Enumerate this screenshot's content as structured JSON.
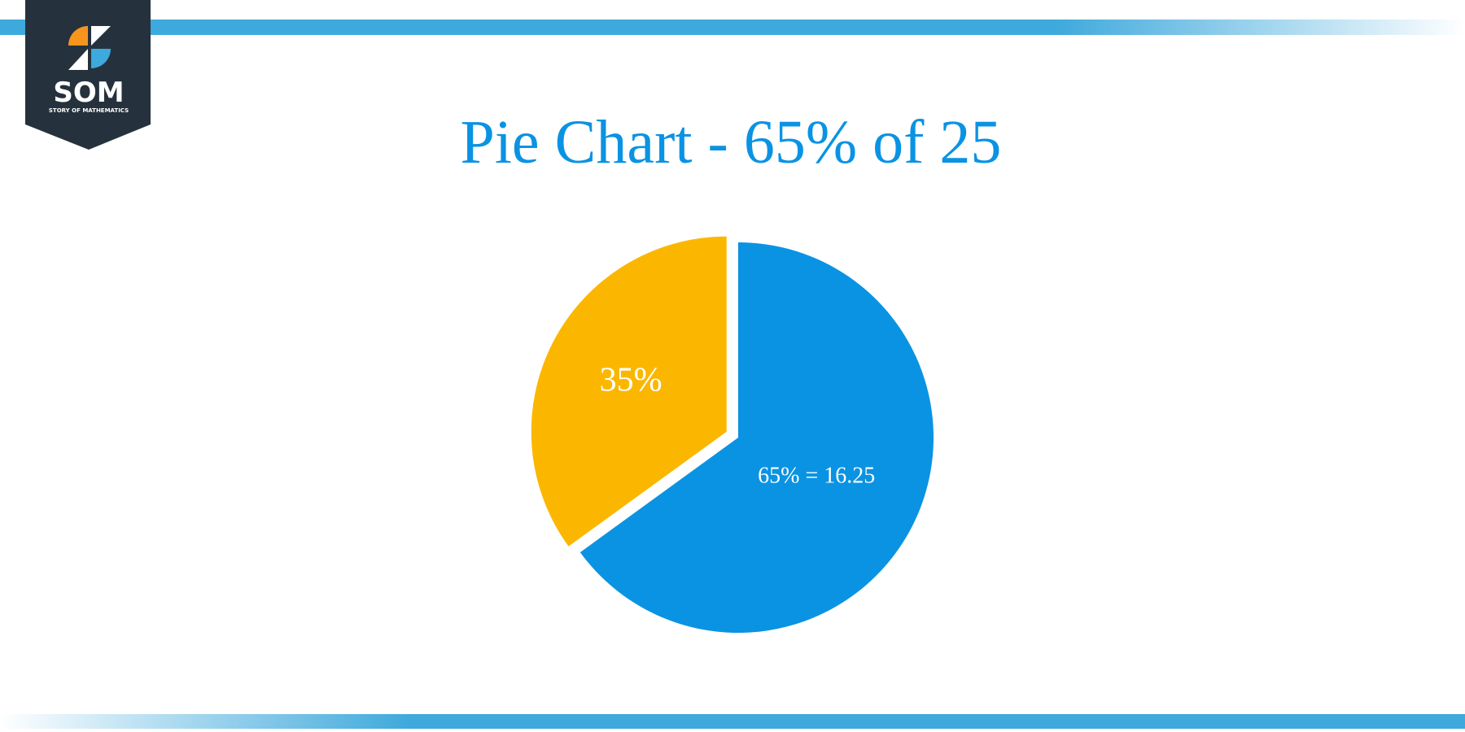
{
  "logo": {
    "text": "SOM",
    "subtitle": "STORY OF MATHEMATICS"
  },
  "chart_data": {
    "type": "pie",
    "title": "Pie Chart - 65% of 25",
    "values": [
      65,
      35
    ],
    "value_labels": [
      "65% = 16.25",
      "35%"
    ],
    "colors": [
      "#0a93e3",
      "#fbb700"
    ]
  }
}
